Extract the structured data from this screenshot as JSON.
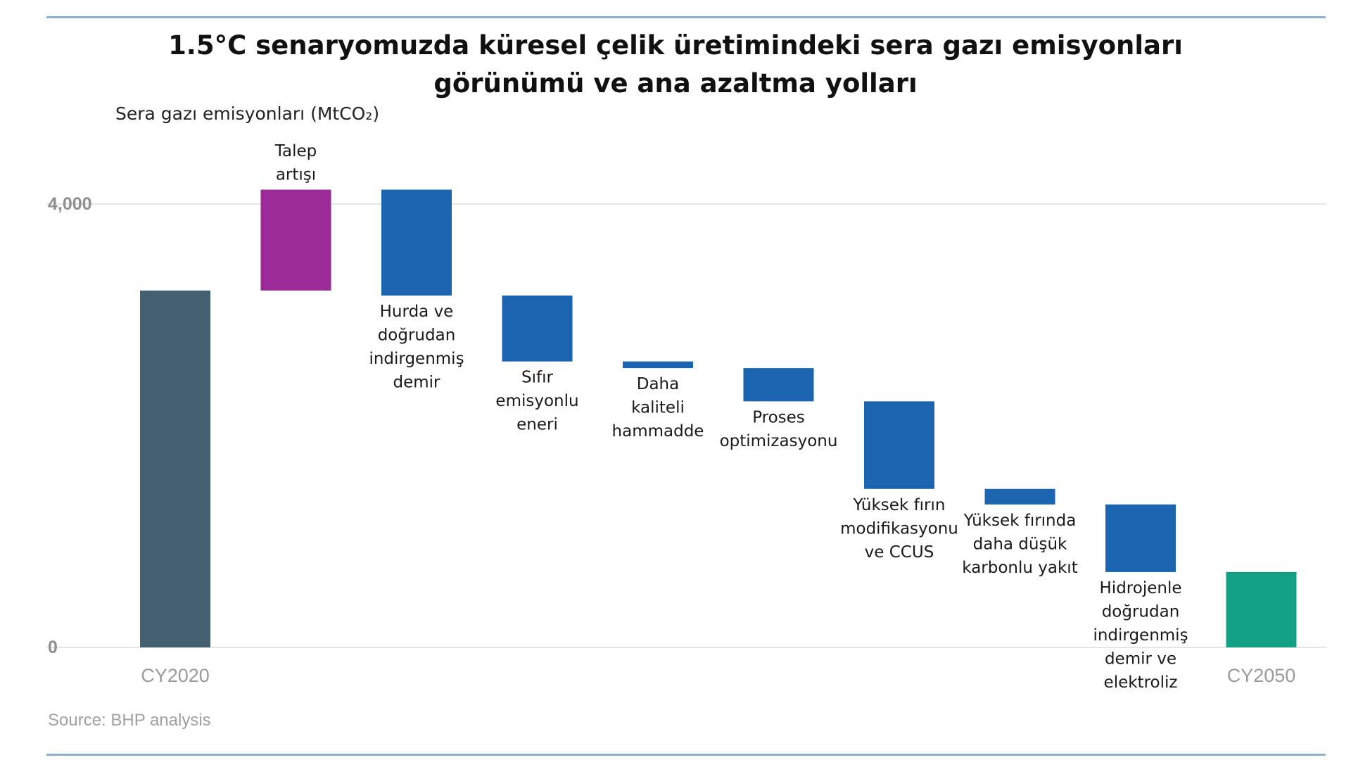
{
  "chart_data": {
    "type": "bar",
    "subtype": "waterfall",
    "title": "1.5°C senaryomuzda küresel çelik üretimindeki sera gazı emisyonları görünümü ve ana azaltma yolları",
    "title_lines": [
      "1.5°C senaryomuzda küresel çelik üretimindeki sera gazı emisyonları",
      "görünümü ve ana azaltma yolları"
    ],
    "ylabel": "Sera gazı emisyonları (MtCO₂)",
    "ylim": [
      0,
      4500
    ],
    "yticks": [
      0,
      4000
    ],
    "ytick_labels": [
      "0",
      "4,000"
    ],
    "grid": true,
    "legend": "none",
    "categories": [
      "CY2020",
      "Talep artışı",
      "Hurda ve doğrudan indirgenmiş demir",
      "Sıfır emisyonlu eneri",
      "Daha kaliteli hammadde",
      "Proses optimizasyonu",
      "Yüksek fırın modifikasyonu ve CCUS",
      "Yüksek fırında daha düşük karbonlu yakıt",
      "Hidrojenle doğrudan indirgenmiş demir ve elektroliz",
      "CY2050"
    ],
    "bars": [
      {
        "label": "CY2020",
        "label_lines": [
          "CY2020"
        ],
        "kind": "total",
        "start": 0,
        "end": 3220,
        "color": "#445f70",
        "label_pos": "axis"
      },
      {
        "label": "Talep artışı",
        "label_lines": [
          "Talep",
          "artışı"
        ],
        "kind": "increase",
        "start": 3220,
        "end": 4130,
        "color": "#9b2b96",
        "label_pos": "above"
      },
      {
        "label": "Hurda ve doğrudan indirgenmiş demir",
        "label_lines": [
          "Hurda ve",
          "doğrudan",
          "indirgenmiş",
          "demir"
        ],
        "kind": "decrease",
        "start": 4130,
        "end": 3175,
        "color": "#1b64b0",
        "label_pos": "below"
      },
      {
        "label": "Sıfır emisyonlu eneri",
        "label_lines": [
          "Sıfır",
          "emisyonlu",
          "eneri"
        ],
        "kind": "decrease",
        "start": 3175,
        "end": 2580,
        "color": "#1b64b0",
        "label_pos": "below"
      },
      {
        "label": "Daha kaliteli hammadde",
        "label_lines": [
          "Daha",
          "kaliteli",
          "hammadde"
        ],
        "kind": "decrease",
        "start": 2580,
        "end": 2520,
        "color": "#1b64b0",
        "label_pos": "below"
      },
      {
        "label": "Proses optimizasyonu",
        "label_lines": [
          "Proses",
          "optimizasyonu"
        ],
        "kind": "decrease",
        "start": 2520,
        "end": 2220,
        "color": "#1b64b0",
        "label_pos": "below"
      },
      {
        "label": "Yüksek fırın modifikasyonu ve CCUS",
        "label_lines": [
          "Yüksek fırın",
          "modifikasyonu",
          "ve CCUS"
        ],
        "kind": "decrease",
        "start": 2220,
        "end": 1430,
        "color": "#1b64b0",
        "label_pos": "below"
      },
      {
        "label": "Yüksek fırında daha düşük karbonlu yakıt",
        "label_lines": [
          "Yüksek fırında",
          "daha düşük",
          "karbonlu yakıt"
        ],
        "kind": "decrease",
        "start": 1430,
        "end": 1290,
        "color": "#1b64b0",
        "label_pos": "below"
      },
      {
        "label": "Hidrojenle doğrudan indirgenmiş demir ve elektroliz",
        "label_lines": [
          "Hidrojenle",
          "doğrudan",
          "indirgenmiş",
          "demir ve",
          "elektroliz"
        ],
        "kind": "decrease",
        "start": 1290,
        "end": 680,
        "color": "#1b64b0",
        "label_pos": "below"
      },
      {
        "label": "CY2050",
        "label_lines": [
          "CY2050"
        ],
        "kind": "total",
        "start": 0,
        "end": 680,
        "color": "#11a083",
        "label_pos": "axis"
      }
    ]
  },
  "source": "Source: BHP analysis"
}
